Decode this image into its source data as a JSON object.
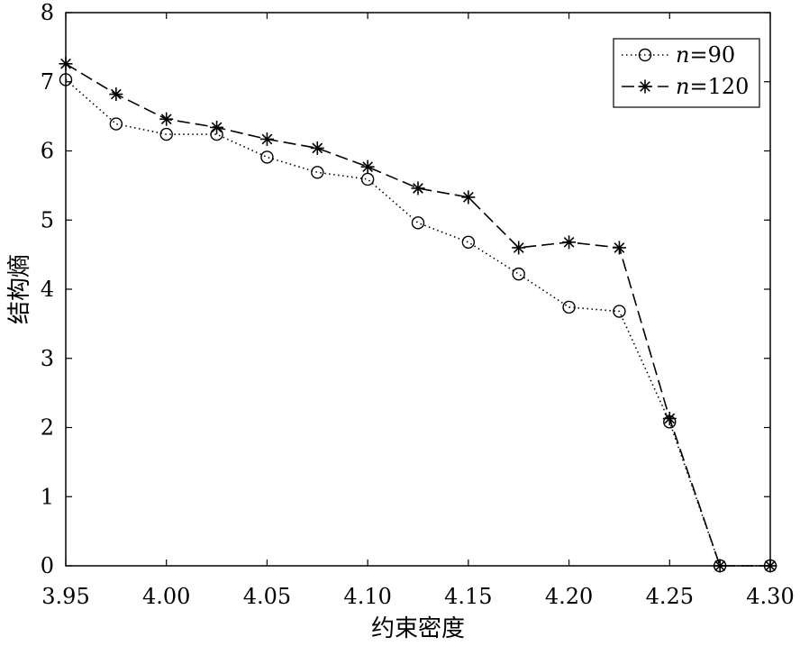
{
  "chart_data": {
    "type": "line",
    "title": "",
    "xlabel": "约束密度",
    "ylabel": "结构熵",
    "x": [
      3.95,
      3.975,
      4.0,
      4.025,
      4.05,
      4.075,
      4.1,
      4.125,
      4.15,
      4.175,
      4.2,
      4.225,
      4.25,
      4.275,
      4.3
    ],
    "xlim": [
      3.95,
      4.3
    ],
    "ylim": [
      0,
      8
    ],
    "xticks": [
      "3.95",
      "4.00",
      "4.05",
      "4.10",
      "4.15",
      "4.20",
      "4.25",
      "4.30"
    ],
    "xtick_values": [
      3.95,
      4.0,
      4.05,
      4.1,
      4.15,
      4.2,
      4.25,
      4.3
    ],
    "yticks": [
      "0",
      "1",
      "2",
      "3",
      "4",
      "5",
      "6",
      "7",
      "8"
    ],
    "ytick_values": [
      0,
      1,
      2,
      3,
      4,
      5,
      6,
      7,
      8
    ],
    "grid": false,
    "legend_position": "top-right",
    "series": [
      {
        "name": "n=90",
        "name_italic": "n",
        "name_rest": "=90",
        "marker": "circle",
        "line_style": "dotted",
        "color": "#000000",
        "values": [
          7.03,
          6.39,
          6.24,
          6.24,
          5.91,
          5.69,
          5.59,
          4.96,
          4.68,
          4.22,
          3.74,
          3.68,
          2.08,
          0,
          0
        ]
      },
      {
        "name": "n=120",
        "name_italic": "n",
        "name_rest": "=120",
        "marker": "star",
        "line_style": "dashed",
        "color": "#000000",
        "values": [
          7.26,
          6.82,
          6.46,
          6.34,
          6.17,
          6.04,
          5.77,
          5.46,
          5.33,
          4.6,
          4.68,
          4.6,
          2.13,
          0,
          0
        ]
      }
    ]
  }
}
